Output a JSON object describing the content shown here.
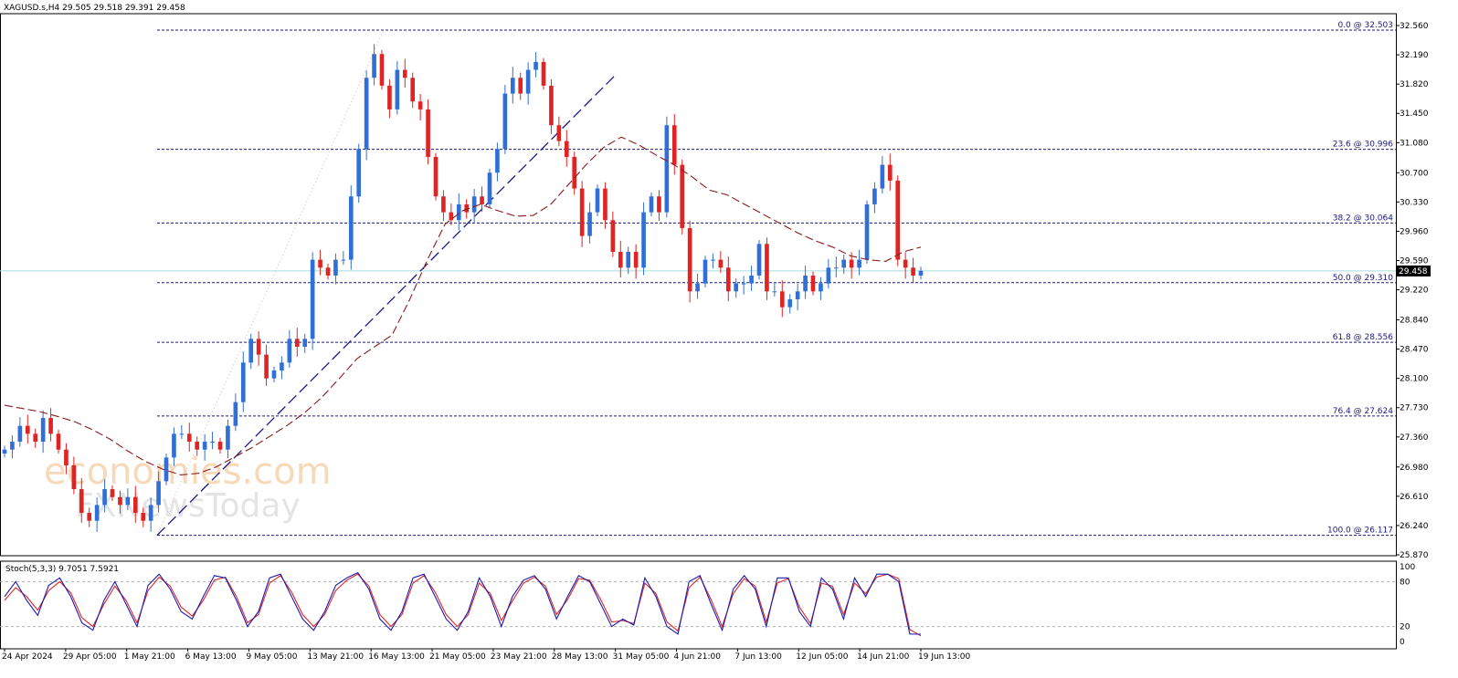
{
  "header": {
    "symbol": "XAGUSD.s,H4",
    "ohlc": "29.505 29.518 29.391 29.458",
    "stoch_label": "Stoch(5,3,3) 9.7051 7.5921"
  },
  "watermark": {
    "line1": "economies.com",
    "line2": "FXNewsToday"
  },
  "colors": {
    "bull": "#2f6fd6",
    "bear": "#e02424",
    "ma": "#8b1a1a",
    "fib": "#1a1a80",
    "stoch_main": "#1c1cb0",
    "stoch_signal": "#e02424",
    "price_line": "#a8dce0"
  },
  "chart_data": {
    "type": "candlestick",
    "timeframe": "H4",
    "ylim": [
      25.87,
      32.56
    ],
    "current_price": 29.458,
    "y_ticks": [
      "32.560",
      "32.190",
      "31.820",
      "31.450",
      "31.080",
      "30.700",
      "30.330",
      "29.960",
      "29.590",
      "29.220",
      "28.840",
      "28.470",
      "28.100",
      "27.730",
      "27.360",
      "26.980",
      "26.610",
      "26.240",
      "25.870"
    ],
    "x_ticks": [
      "24 Apr 2024",
      "29 Apr 05:00",
      "1 May 21:00",
      "6 May 13:00",
      "9 May 05:00",
      "13 May 21:00",
      "16 May 13:00",
      "21 May 05:00",
      "23 May 21:00",
      "28 May 13:00",
      "31 May 05:00",
      "4 Jun 21:00",
      "7 Jun 13:00",
      "12 Jun 05:00",
      "14 Jun 21:00",
      "19 Jun 13:00"
    ],
    "fib_levels": [
      {
        "label": "0.0 @ 32.503",
        "value": 32.503
      },
      {
        "label": "23.6 @ 30.996",
        "value": 30.996
      },
      {
        "label": "38.2 @ 30.064",
        "value": 30.064
      },
      {
        "label": "50.0 @ 29.310",
        "value": 29.31
      },
      {
        "label": "61.8 @ 28.556",
        "value": 28.556
      },
      {
        "label": "76.4 @ 27.624",
        "value": 27.624
      },
      {
        "label": "100.0 @ 26.117",
        "value": 26.117
      }
    ],
    "close_path": [
      27.2,
      27.3,
      27.5,
      27.4,
      27.3,
      27.6,
      27.4,
      27.2,
      27.0,
      26.7,
      26.4,
      26.3,
      26.5,
      26.7,
      26.6,
      26.5,
      26.6,
      26.4,
      26.3,
      26.5,
      26.8,
      27.1,
      27.4,
      27.4,
      27.3,
      27.2,
      27.3,
      27.3,
      27.2,
      27.5,
      27.8,
      28.3,
      28.6,
      28.4,
      28.1,
      28.2,
      28.3,
      28.6,
      28.5,
      28.6,
      29.6,
      29.5,
      29.4,
      29.6,
      29.6,
      30.4,
      31.0,
      31.9,
      32.2,
      31.8,
      31.5,
      32.0,
      31.9,
      31.6,
      31.5,
      30.9,
      30.4,
      30.2,
      30.1,
      30.3,
      30.2,
      30.4,
      30.3,
      30.7,
      31.0,
      31.7,
      31.9,
      31.7,
      32.0,
      32.1,
      31.8,
      31.3,
      31.1,
      30.9,
      30.5,
      29.9,
      30.2,
      30.5,
      30.1,
      29.7,
      29.5,
      29.7,
      29.5,
      30.2,
      30.4,
      30.2,
      31.3,
      30.8,
      30.0,
      29.2,
      29.3,
      29.6,
      29.6,
      29.5,
      29.2,
      29.3,
      29.3,
      29.4,
      29.8,
      29.2,
      29.2,
      29.0,
      29.1,
      29.2,
      29.4,
      29.2,
      29.3,
      29.5,
      29.5,
      29.6,
      29.5,
      29.6,
      30.3,
      30.5,
      30.8,
      30.6,
      29.6,
      29.5,
      29.4,
      29.46
    ],
    "ma_path": [
      27.76,
      27.72,
      27.68,
      27.62,
      27.55,
      27.45,
      27.33,
      27.18,
      27.05,
      26.95,
      26.88,
      26.9,
      26.98,
      27.1,
      27.22,
      27.36,
      27.5,
      27.66,
      27.86,
      28.1,
      28.35,
      28.5,
      28.65,
      29.1,
      29.6,
      30.05,
      30.22,
      30.3,
      30.22,
      30.15,
      30.16,
      30.3,
      30.55,
      30.8,
      31.02,
      31.15,
      31.05,
      30.92,
      30.8,
      30.65,
      30.48,
      30.42,
      30.3,
      30.18,
      30.06,
      29.94,
      29.84,
      29.76,
      29.65,
      29.6,
      29.58,
      29.7,
      29.76
    ],
    "trendline": {
      "from": 26.117,
      "to": 31.95
    },
    "stochastic": {
      "main": 9.7051,
      "signal": 7.5921,
      "levels": [
        80,
        20
      ],
      "ylim": [
        0,
        100
      ],
      "y_ticks": [
        "100",
        "80",
        "20",
        "0"
      ],
      "main_path": [
        60,
        80,
        55,
        35,
        75,
        85,
        60,
        25,
        15,
        55,
        80,
        50,
        20,
        75,
        90,
        70,
        40,
        30,
        60,
        88,
        85,
        55,
        20,
        40,
        85,
        90,
        60,
        30,
        15,
        40,
        75,
        85,
        92,
        70,
        30,
        15,
        40,
        85,
        90,
        60,
        30,
        15,
        40,
        85,
        60,
        20,
        60,
        82,
        88,
        70,
        30,
        60,
        88,
        80,
        50,
        20,
        30,
        22,
        85,
        60,
        20,
        10,
        80,
        88,
        50,
        15,
        70,
        88,
        70,
        20,
        85,
        85,
        40,
        20,
        85,
        70,
        30,
        85,
        60,
        90,
        90,
        80,
        10,
        9.7
      ],
      "signal_path": [
        55,
        72,
        60,
        42,
        68,
        80,
        65,
        32,
        20,
        50,
        74,
        55,
        25,
        68,
        86,
        74,
        46,
        34,
        55,
        82,
        86,
        60,
        25,
        36,
        78,
        88,
        66,
        36,
        20,
        36,
        68,
        82,
        90,
        74,
        36,
        20,
        36,
        78,
        88,
        66,
        36,
        20,
        36,
        78,
        64,
        28,
        54,
        78,
        86,
        74,
        36,
        56,
        84,
        82,
        56,
        26,
        28,
        24,
        78,
        64,
        26,
        14,
        72,
        86,
        56,
        20,
        64,
        84,
        74,
        26,
        78,
        84,
        46,
        24,
        78,
        74,
        36,
        78,
        64,
        86,
        90,
        84,
        16,
        7.6
      ]
    }
  }
}
